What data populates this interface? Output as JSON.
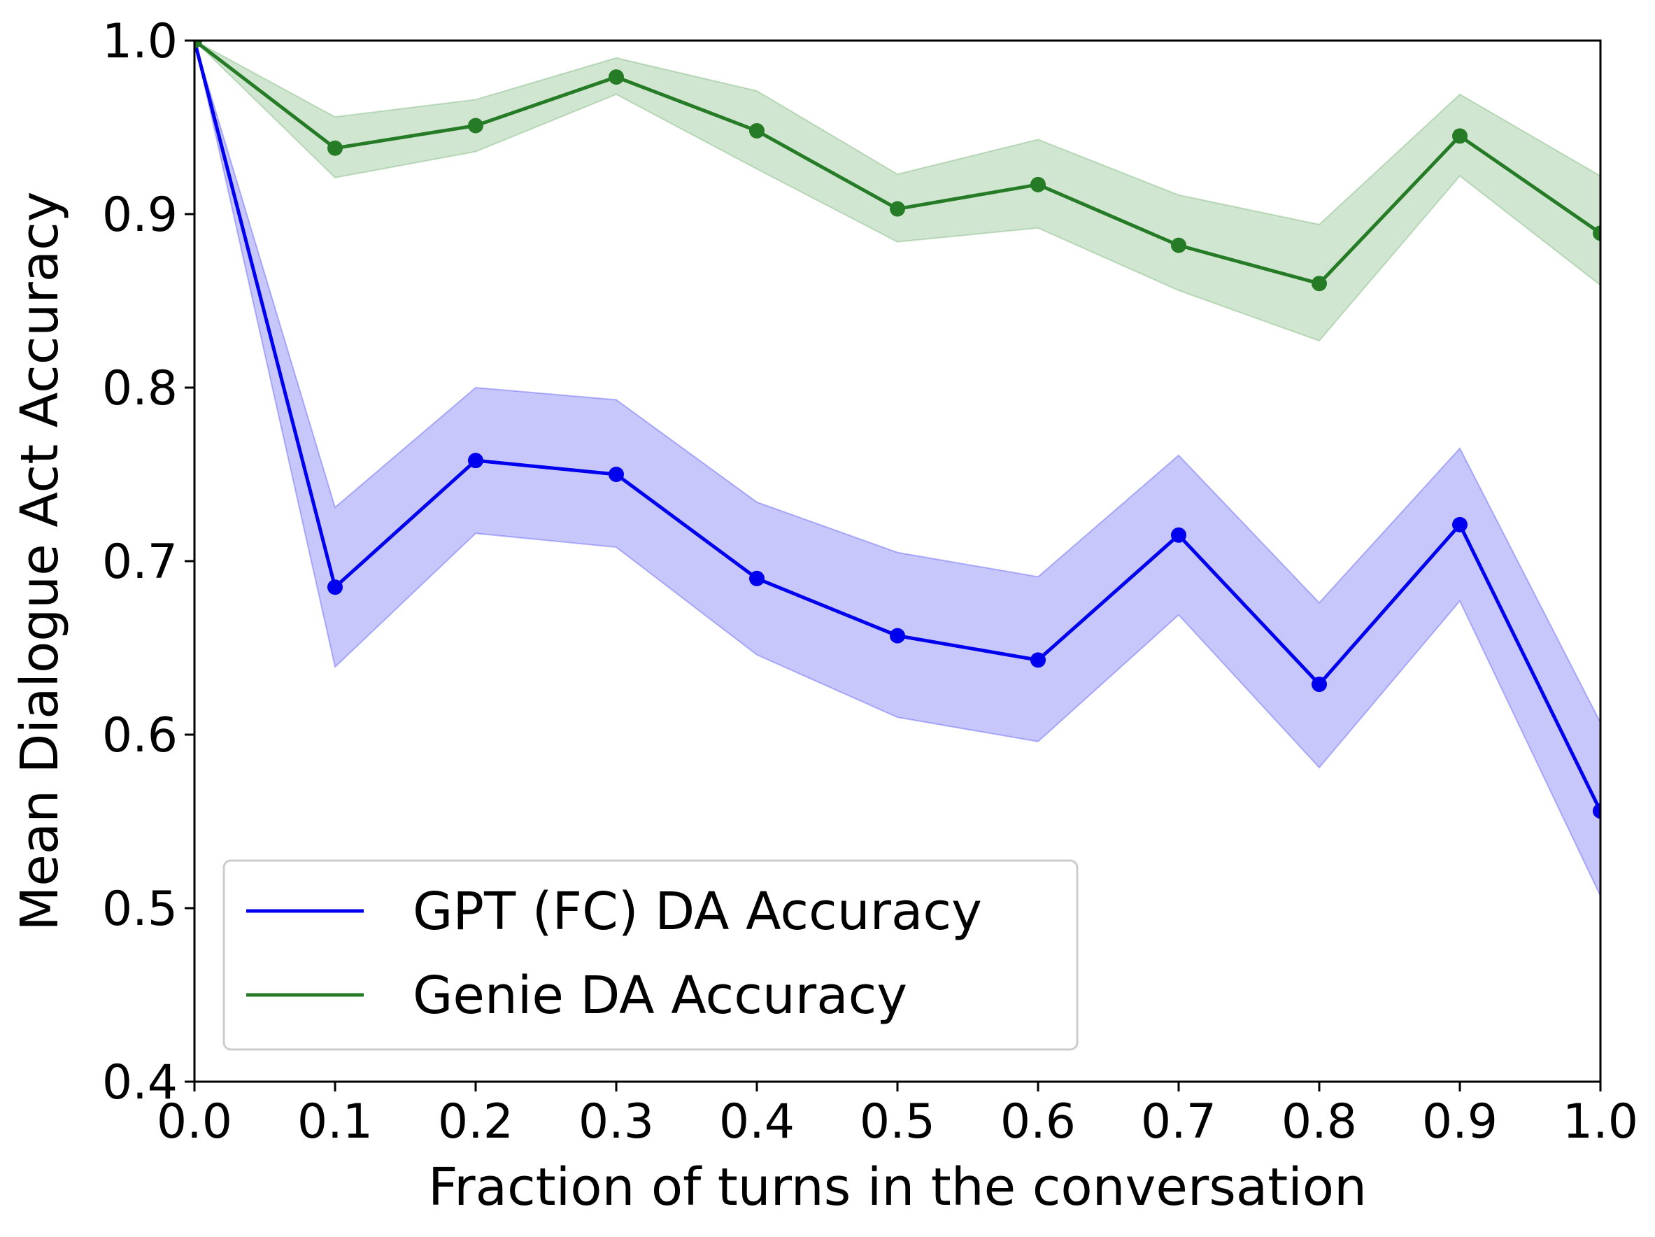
{
  "chart_data": {
    "type": "line",
    "title": "",
    "xlabel": "Fraction of turns in the conversation",
    "ylabel": "Mean Dialogue Act Accuracy",
    "xlim": [
      0.0,
      1.0
    ],
    "ylim": [
      0.4,
      1.0
    ],
    "x_ticks": [
      "0.0",
      "0.1",
      "0.2",
      "0.3",
      "0.4",
      "0.5",
      "0.6",
      "0.7",
      "0.8",
      "0.9",
      "1.0"
    ],
    "y_ticks": [
      "0.4",
      "0.5",
      "0.6",
      "0.7",
      "0.8",
      "0.9",
      "1.0"
    ],
    "x_tick_values": [
      0.0,
      0.1,
      0.2,
      0.3,
      0.4,
      0.5,
      0.6,
      0.7,
      0.8,
      0.9,
      1.0
    ],
    "y_tick_values": [
      0.4,
      0.5,
      0.6,
      0.7,
      0.8,
      0.9,
      1.0
    ],
    "grid": false,
    "legend_position": "lower-left",
    "x": [
      0.0,
      0.1,
      0.2,
      0.3,
      0.4,
      0.5,
      0.6,
      0.7,
      0.8,
      0.9,
      1.0
    ],
    "series": [
      {
        "name": "GPT (FC) DA Accuracy",
        "color": "#0000ee",
        "fill_color": "#0000ee",
        "values": [
          1.0,
          0.685,
          0.758,
          0.75,
          0.69,
          0.657,
          0.643,
          0.715,
          0.629,
          0.721,
          0.556
        ],
        "lower": [
          1.0,
          0.639,
          0.716,
          0.708,
          0.646,
          0.61,
          0.596,
          0.669,
          0.581,
          0.677,
          0.507
        ],
        "upper": [
          1.0,
          0.731,
          0.8,
          0.793,
          0.734,
          0.705,
          0.691,
          0.761,
          0.676,
          0.765,
          0.607
        ]
      },
      {
        "name": "Genie DA Accuracy",
        "color": "#267c26",
        "fill_color": "#2e8b2e",
        "values": [
          1.0,
          0.938,
          0.951,
          0.979,
          0.948,
          0.903,
          0.917,
          0.882,
          0.86,
          0.945,
          0.889
        ],
        "lower": [
          1.0,
          0.921,
          0.936,
          0.969,
          0.926,
          0.884,
          0.892,
          0.856,
          0.827,
          0.922,
          0.859
        ],
        "upper": [
          1.0,
          0.956,
          0.966,
          0.99,
          0.971,
          0.923,
          0.943,
          0.911,
          0.894,
          0.969,
          0.922
        ]
      }
    ]
  }
}
